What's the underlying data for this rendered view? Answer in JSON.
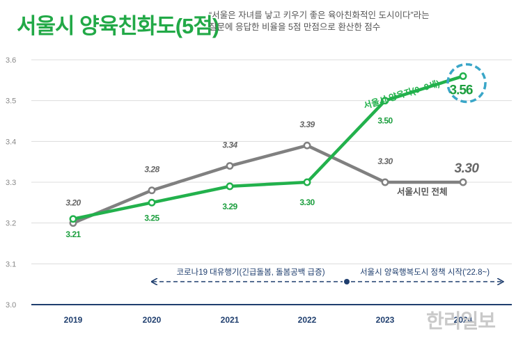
{
  "title": "서울시 양육친화도(5점)",
  "subtitle_line1": "“서울은 자녀를 낳고 키우기 좋은 육아친화적인 도시이다”라는",
  "subtitle_line2": "질문에 응답한 비율을 5점 만점으로 환산한 점수",
  "watermark": "한리일보",
  "colors": {
    "total": "#808080",
    "parent": "#22b14c",
    "axis": "#1f3e6e",
    "highlight": "#3aa6c8"
  },
  "annotations": {
    "covid": "코로나19 대유행기(긴급돌봄, 돌봄공백 급증)",
    "policy": "서울시 양육행복도시 정책 시작('22.8~)"
  },
  "chart_data": {
    "type": "line",
    "categories": [
      "2019",
      "2020",
      "2021",
      "2022",
      "2023",
      "2024"
    ],
    "y_ticks": [
      "3.0",
      "3.1",
      "3.2",
      "3.3",
      "3.4",
      "3.5",
      "3.6"
    ],
    "ylim": [
      3.0,
      3.6
    ],
    "grid": true,
    "series": [
      {
        "name": "서울시민 전체",
        "values": [
          3.2,
          3.28,
          3.34,
          3.39,
          3.3,
          3.3
        ],
        "labels": [
          "3.20",
          "3.28",
          "3.34",
          "3.39",
          "3.30",
          "3.30"
        ]
      },
      {
        "name": "서울시 양육자(0~9세)",
        "values": [
          3.21,
          3.25,
          3.29,
          3.3,
          3.5,
          3.56
        ],
        "labels": [
          "3.21",
          "3.25",
          "3.29",
          "3.30",
          "3.50",
          "3.56"
        ]
      }
    ]
  }
}
